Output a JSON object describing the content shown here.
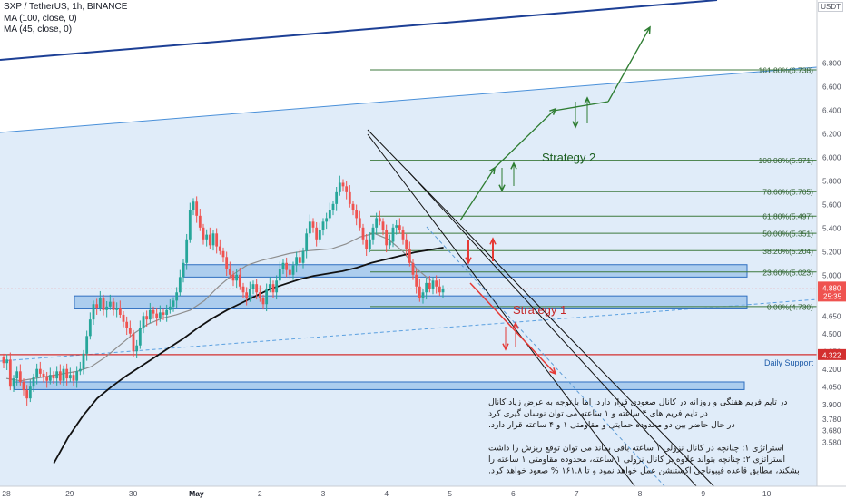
{
  "legend": {
    "symbol": "SXP / TetherUS, 1h, BINANCE",
    "ma1": "MA (100, close, 0)",
    "ma2": "MA (45, close, 0)"
  },
  "currency_badge": "USDT",
  "chart_data": {
    "type": "candlestick",
    "timeframe": "1h",
    "x_ticks": [
      "28",
      "29",
      "30",
      "May",
      "2",
      "3",
      "4",
      "5",
      "6",
      "7",
      "8",
      "9",
      "10"
    ],
    "y_ticks": [
      "6.800",
      "6.600",
      "6.400",
      "6.200",
      "6.000",
      "5.800",
      "5.600",
      "5.400",
      "5.200",
      "5.000",
      "4.850",
      "4.650",
      "4.500",
      "4.350",
      "4.200",
      "4.050",
      "3.900",
      "3.780",
      "3.680",
      "3.580"
    ],
    "ylim": [
      3.53,
      6.88
    ],
    "last_price": {
      "value": "4.880",
      "countdown": "25:35",
      "color": "#ef5350"
    },
    "support_label": {
      "value": "4.322",
      "text": "Daily Support",
      "color": "#d32f2f"
    },
    "fib_levels": [
      {
        "ratio": "161.80%",
        "price": 6.738,
        "label": "161.80%(6.738)"
      },
      {
        "ratio": "100.00%",
        "price": 5.971,
        "label": "100.00%(5.971)"
      },
      {
        "ratio": "78.60%",
        "price": 5.705,
        "label": "78.60%(5.705)"
      },
      {
        "ratio": "61.80%",
        "price": 5.497,
        "label": "61.80%(5.497)"
      },
      {
        "ratio": "50.00%",
        "price": 5.351,
        "label": "50.00%(5.351)"
      },
      {
        "ratio": "38.20%",
        "price": 5.204,
        "label": "38.20%(5.204)"
      },
      {
        "ratio": "23.60%",
        "price": 5.023,
        "label": "23.60%(5.023)"
      },
      {
        "ratio": "0.00%",
        "price": 4.73,
        "label": "0.00%(4.730)"
      }
    ],
    "zones": [
      {
        "low": 4.98,
        "high": 5.085
      },
      {
        "low": 4.71,
        "high": 4.82
      },
      {
        "low": 4.025,
        "high": 4.09
      }
    ],
    "annotations": {
      "strategy1": "Strategy 1",
      "strategy2": "Strategy 2"
    },
    "candles_close": [
      4.25,
      4.28,
      4.05,
      4.12,
      4.18,
      4.09,
      4.02,
      3.95,
      4.05,
      4.13,
      4.2,
      4.16,
      4.13,
      4.1,
      4.15,
      4.12,
      4.18,
      4.1,
      4.2,
      4.12,
      4.15,
      4.1,
      4.18,
      4.2,
      4.33,
      4.48,
      4.62,
      4.75,
      4.72,
      4.8,
      4.7,
      4.73,
      4.77,
      4.7,
      4.72,
      4.66,
      4.6,
      4.55,
      4.5,
      4.35,
      4.4,
      4.55,
      4.65,
      4.62,
      4.7,
      4.67,
      4.63,
      4.68,
      4.66,
      4.7,
      4.73,
      4.78,
      4.85,
      4.98,
      5.1,
      5.3,
      5.55,
      5.62,
      5.5,
      5.4,
      5.3,
      5.34,
      5.25,
      5.35,
      5.24,
      5.2,
      5.15,
      5.05,
      5.0,
      4.95,
      5.0,
      4.9,
      4.85,
      4.8,
      4.88,
      4.92,
      4.85,
      4.8,
      4.75,
      4.88,
      4.92,
      4.85,
      4.95,
      5.05,
      5.1,
      5.04,
      5.0,
      5.08,
      5.15,
      5.1,
      5.2,
      5.35,
      5.45,
      5.4,
      5.3,
      5.38,
      5.45,
      5.48,
      5.55,
      5.6,
      5.7,
      5.78,
      5.75,
      5.7,
      5.6,
      5.55,
      5.48,
      5.4,
      5.3,
      5.22,
      5.3,
      5.4,
      5.48,
      5.45,
      5.38,
      5.25,
      5.28,
      5.4,
      5.42,
      5.38,
      5.3,
      5.22,
      5.1,
      5.0,
      4.9,
      4.8,
      4.85,
      4.93,
      4.88,
      4.95,
      4.9,
      4.85,
      4.88
    ],
    "candles_open_offset_note": "",
    "ma45_close": [
      4.12,
      4.1,
      4.12,
      4.14,
      4.16,
      4.18,
      4.22,
      4.3,
      4.4,
      4.5,
      4.58,
      4.63,
      4.66,
      4.7,
      4.78,
      4.9,
      5.0,
      5.08,
      5.12,
      5.15,
      5.18,
      5.2,
      5.21,
      5.22,
      5.26,
      5.32,
      5.35,
      5.3,
      5.2,
      5.05,
      4.95
    ],
    "ma100_close": [
      3.4,
      3.62,
      3.8,
      3.95,
      4.05,
      4.14,
      4.22,
      4.3,
      4.38,
      4.46,
      4.55,
      4.63,
      4.7,
      4.76,
      4.82,
      4.88,
      4.92,
      4.96,
      4.99,
      5.01,
      5.03,
      5.06,
      5.1,
      5.13,
      5.16,
      5.19,
      5.21,
      5.23
    ],
    "text_note": [
      "در تایم فریم هفتگی و روزانه در کانال صعودی قرار دارد. اما با توجه به عرض زیاد کانال",
      "در تایم فریم های ۴ ساعته و ۱ ساعته می توان نوسان گیری کرد",
      "در حال حاضر بین دو محدوده حمایتی و مقاومتی ۱ و ۴ ساعته قرار دارد.",
      "",
      "استراتژی ۱: چنانچه در کانال نزولی ۱ ساعته باقی بماند می توان توقع ریزش را داشت",
      "استراتژی ۲: چنانچه بتواند علاوه بر کانال نزولی ۱ ساعته، محدوده مقاومتی ۱ ساعته را",
      "بشکند، مطابق قاعده فیبوناچی اکستنشن عمل خواهد نمود و تا ۱۶۱.۸ % صعود خواهد کرد."
    ],
    "grid": false
  }
}
